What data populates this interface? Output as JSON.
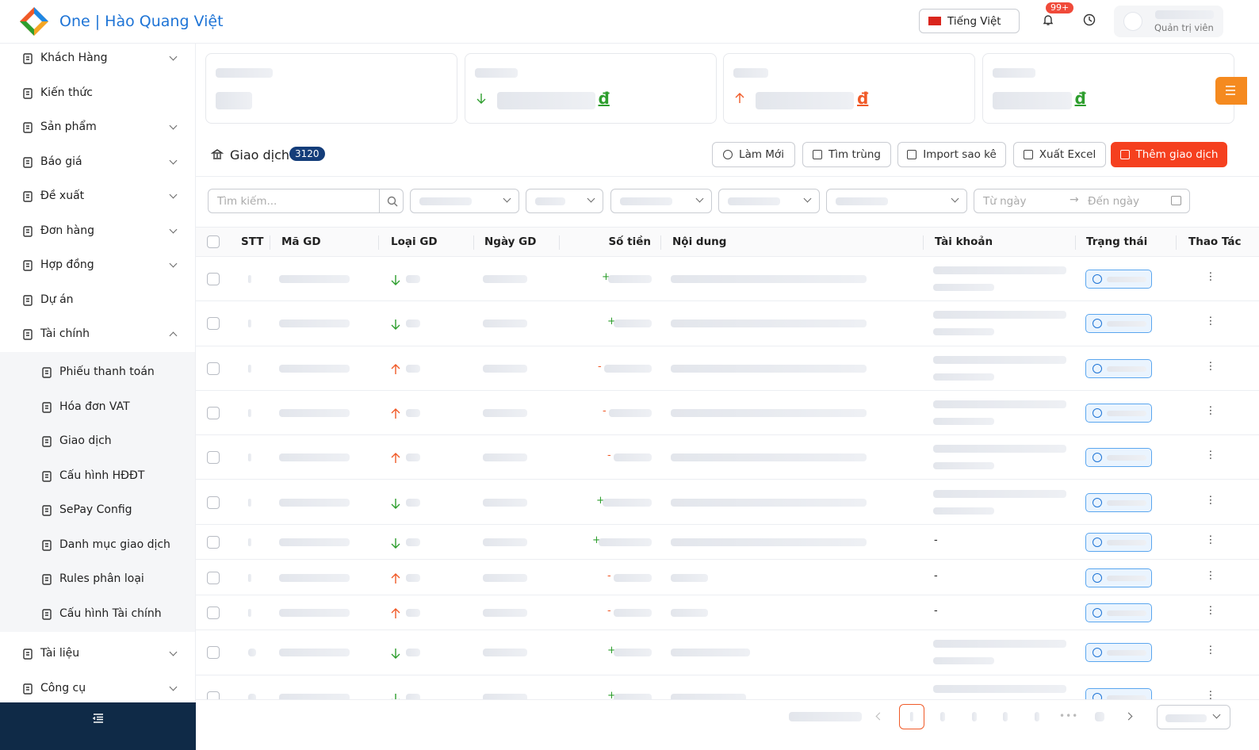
{
  "header": {
    "brand": "One | Hào Quang Việt",
    "language": "Tiếng Việt",
    "notification_badge": "99+",
    "user_role": "Quản trị viên"
  },
  "sidebar": {
    "items": [
      {
        "label": "Khách Hàng",
        "expandable": true
      },
      {
        "label": "Kiến thức",
        "expandable": false
      },
      {
        "label": "Sản phẩm",
        "expandable": true
      },
      {
        "label": "Báo giá",
        "expandable": true
      },
      {
        "label": "Đề xuất",
        "expandable": true
      },
      {
        "label": "Đơn hàng",
        "expandable": true
      },
      {
        "label": "Hợp đồng",
        "expandable": true
      },
      {
        "label": "Dự án",
        "expandable": false
      },
      {
        "label": "Tài chính",
        "expandable": true,
        "open": true,
        "children": [
          "Phiếu thanh toán",
          "Hóa đơn VAT",
          "Giao dịch",
          "Cấu hình HĐĐT",
          "SePay Config",
          "Danh mục giao dịch",
          "Rules phân loại",
          "Cấu hình Tài chính"
        ]
      },
      {
        "label": "Tài liệu",
        "expandable": true
      },
      {
        "label": "Công cụ",
        "expandable": true
      }
    ]
  },
  "stats": [
    {
      "arrow": null
    },
    {
      "arrow": "down",
      "currency": "đ",
      "color": "#2e9e2e"
    },
    {
      "arrow": "up",
      "currency": "đ",
      "color": "#f05a28"
    },
    {
      "arrow": null,
      "currency": "đ",
      "color": "#2e9e2e"
    }
  ],
  "section": {
    "title": "Giao dịch",
    "count": "3120",
    "buttons": [
      "Làm Mới",
      "Tìm trùng",
      "Import sao kê",
      "Xuất Excel",
      "Thêm giao dịch"
    ]
  },
  "filters": {
    "search_placeholder": "Tìm kiếm...",
    "date_from": "Từ ngày",
    "date_to": "Đến ngày"
  },
  "table": {
    "columns": [
      "STT",
      "Mã GD",
      "Loại GD",
      "Ngày GD",
      "Số tiền",
      "Nội dung",
      "Tài khoản",
      "Trạng thái",
      "Thao Tác"
    ],
    "rows": [
      {
        "sign": "+"
      },
      {
        "sign": "+"
      },
      {
        "sign": "-"
      },
      {
        "sign": "-"
      },
      {
        "sign": "-"
      },
      {
        "sign": "+"
      },
      {
        "sign": "+",
        "account": "-"
      },
      {
        "sign": "-",
        "account": "-"
      },
      {
        "sign": "-",
        "account": "-"
      },
      {
        "sign": "+"
      },
      {
        "sign": "+"
      }
    ]
  },
  "pagination": {
    "ellipsis": "•••"
  }
}
